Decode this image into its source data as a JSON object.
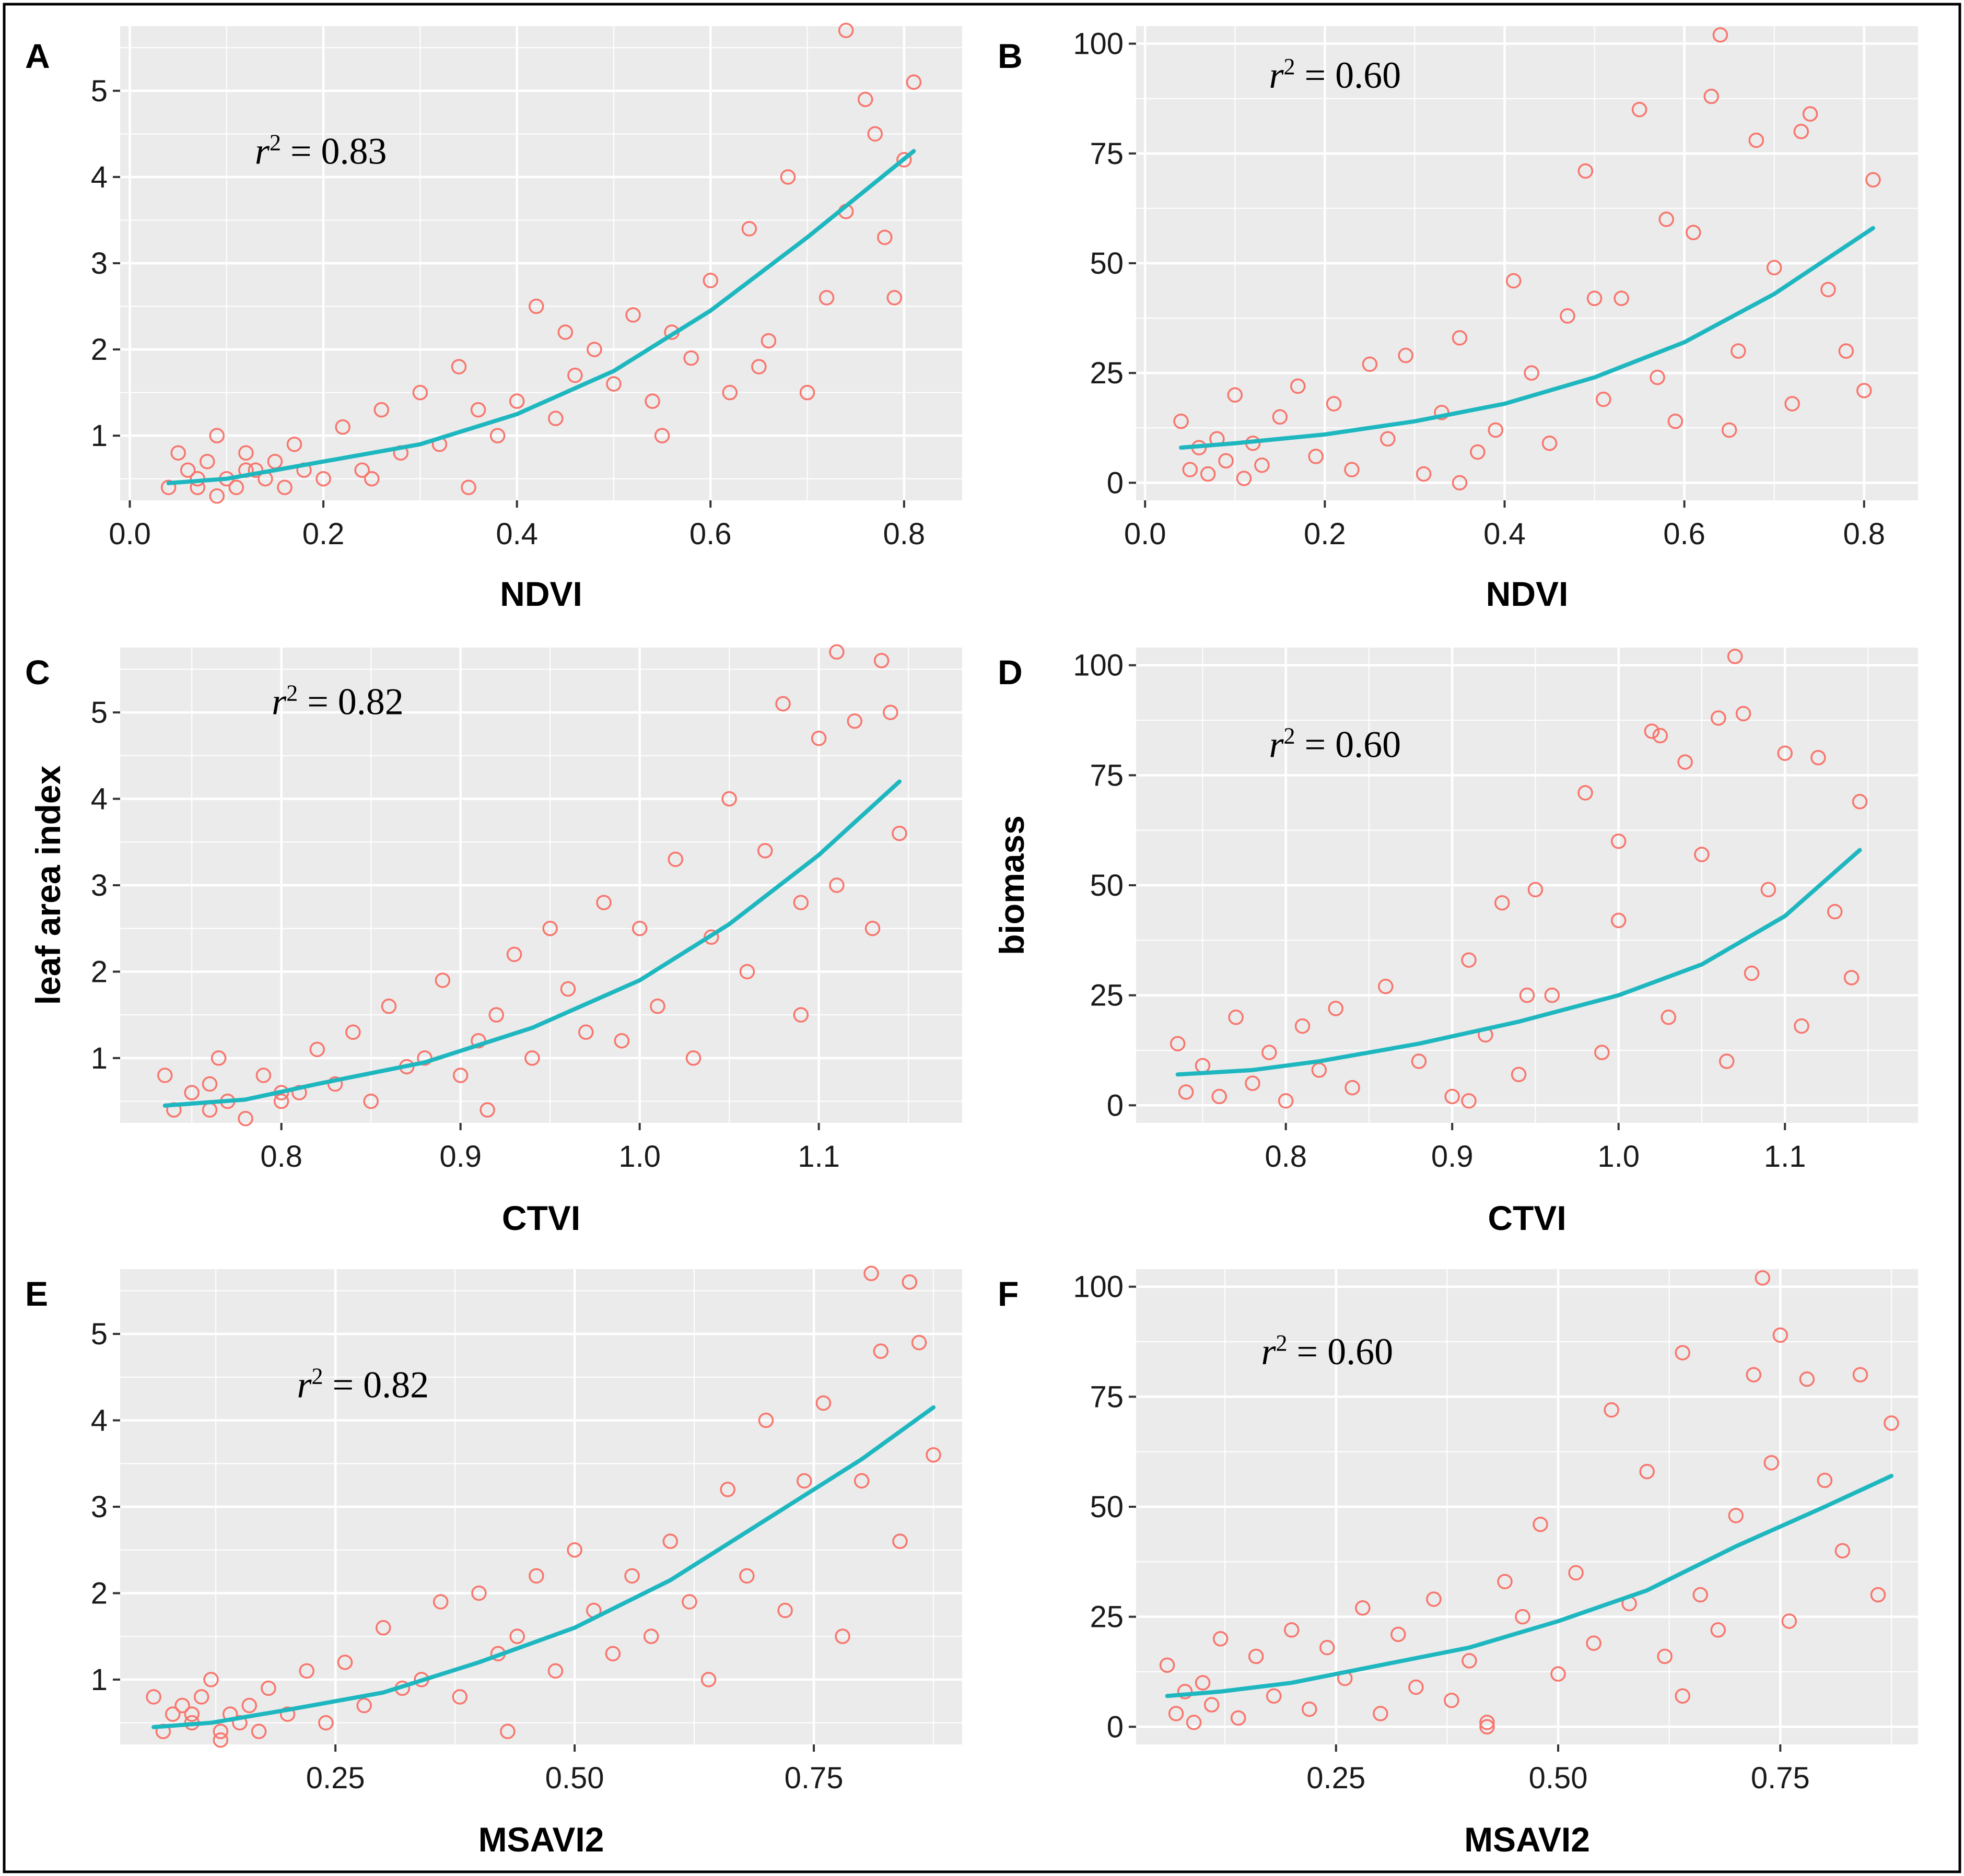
{
  "figure": {
    "background": "#ffffff",
    "panel_background": "#ebebeb",
    "grid_color": "#ffffff",
    "point_color": "#f8766d",
    "line_color": "#1fb7bf",
    "border_color": "#000000"
  },
  "chart_data": [
    {
      "id": "A",
      "type": "scatter",
      "xlabel": "NDVI",
      "ylabel": "",
      "xlim": [
        -0.01,
        0.86
      ],
      "ylim": [
        0.25,
        5.75
      ],
      "xticks": [
        0.0,
        0.2,
        0.4,
        0.6,
        0.8
      ],
      "xtick_labels": [
        "0.0",
        "0.2",
        "0.4",
        "0.6",
        "0.8"
      ],
      "yticks": [
        1,
        2,
        3,
        4,
        5
      ],
      "ytick_labels": [
        "1",
        "2",
        "3",
        "4",
        "5"
      ],
      "annotation": {
        "symbol": "r",
        "sup": "2",
        "text": " = 0.83"
      },
      "fit": {
        "x": [
          0.04,
          0.1,
          0.2,
          0.3,
          0.4,
          0.5,
          0.6,
          0.7,
          0.81
        ],
        "y": [
          0.45,
          0.5,
          0.7,
          0.9,
          1.25,
          1.75,
          2.45,
          3.3,
          4.3
        ]
      },
      "points": {
        "x": [
          0.04,
          0.05,
          0.06,
          0.07,
          0.08,
          0.09,
          0.1,
          0.11,
          0.12,
          0.13,
          0.14,
          0.15,
          0.16,
          0.17,
          0.18,
          0.2,
          0.22,
          0.24,
          0.26,
          0.28,
          0.3,
          0.32,
          0.34,
          0.36,
          0.38,
          0.4,
          0.42,
          0.44,
          0.46,
          0.48,
          0.5,
          0.52,
          0.54,
          0.56,
          0.58,
          0.6,
          0.62,
          0.64,
          0.66,
          0.68,
          0.7,
          0.72,
          0.74,
          0.76,
          0.78,
          0.8,
          0.81,
          0.74,
          0.77,
          0.79,
          0.55,
          0.35,
          0.45,
          0.65,
          0.25,
          0.09,
          0.12,
          0.07
        ],
        "y": [
          0.4,
          0.8,
          0.6,
          0.5,
          0.7,
          1.0,
          0.5,
          0.4,
          0.8,
          0.6,
          0.5,
          0.7,
          0.4,
          0.9,
          0.6,
          0.5,
          1.1,
          0.6,
          1.3,
          0.8,
          1.5,
          0.9,
          1.8,
          1.3,
          1.0,
          1.4,
          2.5,
          1.2,
          1.7,
          2.0,
          1.6,
          2.4,
          1.4,
          2.2,
          1.9,
          2.8,
          1.5,
          3.4,
          2.1,
          4.0,
          1.5,
          2.6,
          3.6,
          4.9,
          3.3,
          4.2,
          5.1,
          5.7,
          4.5,
          2.6,
          1.0,
          0.4,
          2.2,
          1.8,
          0.5,
          0.3,
          0.6,
          0.4
        ]
      }
    },
    {
      "id": "B",
      "type": "scatter",
      "xlabel": "NDVI",
      "ylabel": "",
      "xlim": [
        -0.01,
        0.86
      ],
      "ylim": [
        -4,
        104
      ],
      "xticks": [
        0.0,
        0.2,
        0.4,
        0.6,
        0.8
      ],
      "xtick_labels": [
        "0.0",
        "0.2",
        "0.4",
        "0.6",
        "0.8"
      ],
      "yticks": [
        0,
        25,
        50,
        75,
        100
      ],
      "ytick_labels": [
        "0",
        "25",
        "50",
        "75",
        "100"
      ],
      "annotation": {
        "symbol": "r",
        "sup": "2",
        "text": " = 0.60"
      },
      "fit": {
        "x": [
          0.04,
          0.1,
          0.2,
          0.3,
          0.4,
          0.5,
          0.6,
          0.7,
          0.81
        ],
        "y": [
          8,
          9,
          11,
          14,
          18,
          24,
          32,
          43,
          58
        ]
      },
      "points": {
        "x": [
          0.04,
          0.05,
          0.06,
          0.07,
          0.08,
          0.09,
          0.1,
          0.11,
          0.12,
          0.13,
          0.15,
          0.17,
          0.19,
          0.21,
          0.23,
          0.25,
          0.27,
          0.29,
          0.31,
          0.33,
          0.35,
          0.37,
          0.39,
          0.41,
          0.43,
          0.45,
          0.47,
          0.49,
          0.51,
          0.53,
          0.55,
          0.57,
          0.59,
          0.61,
          0.63,
          0.64,
          0.66,
          0.68,
          0.7,
          0.72,
          0.74,
          0.76,
          0.78,
          0.8,
          0.81,
          0.65,
          0.73,
          0.5,
          0.35,
          0.58
        ],
        "y": [
          14,
          3,
          8,
          2,
          10,
          5,
          20,
          1,
          9,
          4,
          15,
          22,
          6,
          18,
          3,
          27,
          10,
          29,
          2,
          16,
          33,
          7,
          12,
          46,
          25,
          9,
          38,
          71,
          19,
          42,
          85,
          24,
          14,
          57,
          88,
          102,
          30,
          78,
          49,
          18,
          84,
          44,
          30,
          21,
          69,
          12,
          80,
          42,
          0,
          60
        ]
      }
    },
    {
      "id": "C",
      "type": "scatter",
      "xlabel": "CTVI",
      "ylabel": "leaf area index",
      "xlim": [
        0.71,
        1.18
      ],
      "ylim": [
        0.25,
        5.75
      ],
      "xticks": [
        0.8,
        0.9,
        1.0,
        1.1
      ],
      "xtick_labels": [
        "0.8",
        "0.9",
        "1.0",
        "1.1"
      ],
      "yticks": [
        1,
        2,
        3,
        4,
        5
      ],
      "ytick_labels": [
        "1",
        "2",
        "3",
        "4",
        "5"
      ],
      "annotation": {
        "symbol": "r",
        "sup": "2",
        "text": " = 0.82"
      },
      "fit": {
        "x": [
          0.735,
          0.78,
          0.82,
          0.88,
          0.94,
          1.0,
          1.05,
          1.1,
          1.145
        ],
        "y": [
          0.45,
          0.52,
          0.7,
          0.95,
          1.35,
          1.9,
          2.55,
          3.35,
          4.2
        ]
      },
      "points": {
        "x": [
          0.735,
          0.74,
          0.75,
          0.76,
          0.765,
          0.77,
          0.78,
          0.79,
          0.8,
          0.81,
          0.82,
          0.83,
          0.84,
          0.85,
          0.86,
          0.87,
          0.88,
          0.89,
          0.9,
          0.91,
          0.92,
          0.93,
          0.94,
          0.95,
          0.96,
          0.97,
          0.98,
          0.99,
          1.0,
          1.01,
          1.02,
          1.03,
          1.04,
          1.05,
          1.06,
          1.07,
          1.08,
          1.09,
          1.1,
          1.11,
          1.12,
          1.13,
          1.14,
          1.145,
          1.11,
          1.135,
          1.09,
          0.915,
          0.76,
          0.8
        ],
        "y": [
          0.8,
          0.4,
          0.6,
          0.7,
          1.0,
          0.5,
          0.3,
          0.8,
          0.5,
          0.6,
          1.1,
          0.7,
          1.3,
          0.5,
          1.6,
          0.9,
          1.0,
          1.9,
          0.8,
          1.2,
          1.5,
          2.2,
          1.0,
          2.5,
          1.8,
          1.3,
          2.8,
          1.2,
          2.5,
          1.6,
          3.3,
          1.0,
          2.4,
          4.0,
          2.0,
          3.4,
          5.1,
          2.8,
          4.7,
          3.0,
          4.9,
          2.5,
          5.0,
          3.6,
          5.7,
          5.6,
          1.5,
          0.4,
          0.4,
          0.6
        ]
      }
    },
    {
      "id": "D",
      "type": "scatter",
      "xlabel": "CTVI",
      "ylabel": "biomass",
      "xlim": [
        0.71,
        1.18
      ],
      "ylim": [
        -4,
        104
      ],
      "xticks": [
        0.8,
        0.9,
        1.0,
        1.1
      ],
      "xtick_labels": [
        "0.8",
        "0.9",
        "1.0",
        "1.1"
      ],
      "yticks": [
        0,
        25,
        50,
        75,
        100
      ],
      "ytick_labels": [
        "0",
        "25",
        "50",
        "75",
        "100"
      ],
      "annotation": {
        "symbol": "r",
        "sup": "2",
        "text": " = 0.60"
      },
      "fit": {
        "x": [
          0.735,
          0.78,
          0.82,
          0.88,
          0.94,
          1.0,
          1.05,
          1.1,
          1.145
        ],
        "y": [
          7,
          8,
          10,
          14,
          19,
          25,
          32,
          43,
          58
        ]
      },
      "points": {
        "x": [
          0.735,
          0.74,
          0.75,
          0.76,
          0.77,
          0.78,
          0.79,
          0.8,
          0.81,
          0.82,
          0.83,
          0.84,
          0.86,
          0.88,
          0.9,
          0.91,
          0.92,
          0.93,
          0.94,
          0.95,
          0.96,
          0.98,
          0.99,
          1.0,
          1.02,
          1.03,
          1.04,
          1.05,
          1.06,
          1.07,
          1.08,
          1.09,
          1.1,
          1.11,
          1.12,
          1.13,
          1.14,
          1.145,
          1.065,
          1.025,
          1.075,
          0.91,
          0.945,
          1.0
        ],
        "y": [
          14,
          3,
          9,
          2,
          20,
          5,
          12,
          1,
          18,
          8,
          22,
          4,
          27,
          10,
          2,
          33,
          16,
          46,
          7,
          49,
          25,
          71,
          12,
          42,
          85,
          20,
          78,
          57,
          88,
          102,
          30,
          49,
          80,
          18,
          79,
          44,
          29,
          69,
          10,
          84,
          89,
          1,
          25,
          60
        ]
      }
    },
    {
      "id": "E",
      "type": "scatter",
      "xlabel": "MSAVI2",
      "ylabel": "",
      "xlim": [
        0.025,
        0.905
      ],
      "ylim": [
        0.25,
        5.75
      ],
      "xticks": [
        0.25,
        0.5,
        0.75
      ],
      "xtick_labels": [
        "0.25",
        "0.50",
        "0.75"
      ],
      "yticks": [
        1,
        2,
        3,
        4,
        5
      ],
      "ytick_labels": [
        "1",
        "2",
        "3",
        "4",
        "5"
      ],
      "annotation": {
        "symbol": "r",
        "sup": "2",
        "text": " = 0.82"
      },
      "fit": {
        "x": [
          0.06,
          0.12,
          0.2,
          0.3,
          0.4,
          0.5,
          0.6,
          0.7,
          0.8,
          0.875
        ],
        "y": [
          0.45,
          0.5,
          0.65,
          0.85,
          1.2,
          1.6,
          2.15,
          2.85,
          3.55,
          4.15
        ]
      },
      "points": {
        "x": [
          0.06,
          0.07,
          0.08,
          0.09,
          0.1,
          0.11,
          0.12,
          0.13,
          0.14,
          0.15,
          0.16,
          0.17,
          0.18,
          0.2,
          0.22,
          0.24,
          0.26,
          0.28,
          0.3,
          0.32,
          0.34,
          0.36,
          0.38,
          0.4,
          0.42,
          0.44,
          0.46,
          0.48,
          0.5,
          0.52,
          0.54,
          0.56,
          0.58,
          0.6,
          0.62,
          0.64,
          0.66,
          0.68,
          0.7,
          0.72,
          0.74,
          0.76,
          0.78,
          0.8,
          0.82,
          0.84,
          0.86,
          0.875,
          0.81,
          0.85,
          0.43,
          0.13,
          0.1
        ],
        "y": [
          0.8,
          0.4,
          0.6,
          0.7,
          0.5,
          0.8,
          1.0,
          0.4,
          0.6,
          0.5,
          0.7,
          0.4,
          0.9,
          0.6,
          1.1,
          0.5,
          1.2,
          0.7,
          1.6,
          0.9,
          1.0,
          1.9,
          0.8,
          2.0,
          1.3,
          1.5,
          2.2,
          1.1,
          2.5,
          1.8,
          1.3,
          2.2,
          1.5,
          2.6,
          1.9,
          1.0,
          3.2,
          2.2,
          4.0,
          1.8,
          3.3,
          4.2,
          1.5,
          3.3,
          4.8,
          2.6,
          4.9,
          3.6,
          5.7,
          5.6,
          0.4,
          0.3,
          0.6
        ]
      }
    },
    {
      "id": "F",
      "type": "scatter",
      "xlabel": "MSAVI2",
      "ylabel": "",
      "xlim": [
        0.025,
        0.905
      ],
      "ylim": [
        -4,
        104
      ],
      "xticks": [
        0.25,
        0.5,
        0.75
      ],
      "xtick_labels": [
        "0.25",
        "0.50",
        "0.75"
      ],
      "yticks": [
        0,
        25,
        50,
        75,
        100
      ],
      "ytick_labels": [
        "0",
        "25",
        "50",
        "75",
        "100"
      ],
      "annotation": {
        "symbol": "r",
        "sup": "2",
        "text": " = 0.60"
      },
      "fit": {
        "x": [
          0.06,
          0.12,
          0.2,
          0.3,
          0.4,
          0.5,
          0.6,
          0.7,
          0.8,
          0.875
        ],
        "y": [
          7,
          8,
          10,
          14,
          18,
          24,
          31,
          41,
          50,
          57
        ]
      },
      "points": {
        "x": [
          0.06,
          0.07,
          0.08,
          0.09,
          0.1,
          0.11,
          0.12,
          0.14,
          0.16,
          0.18,
          0.2,
          0.22,
          0.24,
          0.26,
          0.28,
          0.3,
          0.32,
          0.34,
          0.36,
          0.38,
          0.4,
          0.42,
          0.44,
          0.46,
          0.48,
          0.5,
          0.52,
          0.54,
          0.56,
          0.58,
          0.6,
          0.62,
          0.64,
          0.66,
          0.68,
          0.7,
          0.72,
          0.74,
          0.76,
          0.78,
          0.8,
          0.82,
          0.84,
          0.86,
          0.875,
          0.73,
          0.75,
          0.42,
          0.64
        ],
        "y": [
          14,
          3,
          8,
          1,
          10,
          5,
          20,
          2,
          16,
          7,
          22,
          4,
          18,
          11,
          27,
          3,
          21,
          9,
          29,
          6,
          15,
          1,
          33,
          25,
          46,
          12,
          35,
          19,
          72,
          28,
          58,
          16,
          85,
          30,
          22,
          48,
          80,
          60,
          24,
          79,
          56,
          40,
          80,
          30,
          69,
          102,
          89,
          0,
          7
        ]
      }
    }
  ]
}
